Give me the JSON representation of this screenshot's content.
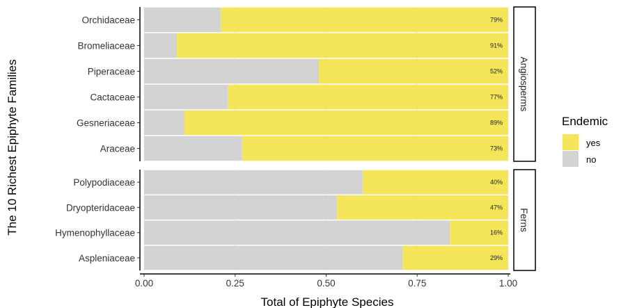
{
  "chart_data": {
    "type": "bar",
    "orientation": "horizontal",
    "stacked": true,
    "xlabel": "Total of Epiphyte Species",
    "ylabel": "The 10 Richest Epiphyte Families",
    "xlim": [
      0,
      1
    ],
    "x_ticks": [
      "0.00",
      "0.25",
      "0.50",
      "0.75",
      "1.00"
    ],
    "legend": {
      "title": "Endemic",
      "position": "right",
      "entries": [
        {
          "label": "yes",
          "color": "#F4E55A"
        },
        {
          "label": "no",
          "color": "#D3D3D3"
        }
      ]
    },
    "panels": [
      {
        "name": "Angiosperms",
        "categories": [
          "Orchidaceae",
          "Bromeliaceae",
          "Piperaceae",
          "Cactaceae",
          "Gesneriaceae",
          "Araceae"
        ],
        "series": [
          {
            "name": "no",
            "values": [
              0.21,
              0.09,
              0.48,
              0.23,
              0.11,
              0.27
            ]
          },
          {
            "name": "yes",
            "values": [
              0.79,
              0.91,
              0.52,
              0.77,
              0.89,
              0.73
            ]
          }
        ],
        "labels": [
          "79%",
          "91%",
          "52%",
          "77%",
          "89%",
          "73%"
        ]
      },
      {
        "name": "Ferns",
        "categories": [
          "Polypodiaceae",
          "Dryopteridaceae",
          "Hymenophyllaceae",
          "Aspleniaceae"
        ],
        "series": [
          {
            "name": "no",
            "values": [
              0.6,
              0.53,
              0.84,
              0.71
            ]
          },
          {
            "name": "yes",
            "values": [
              0.4,
              0.47,
              0.16,
              0.29
            ]
          }
        ],
        "labels": [
          "40%",
          "47%",
          "16%",
          "29%"
        ]
      }
    ]
  }
}
